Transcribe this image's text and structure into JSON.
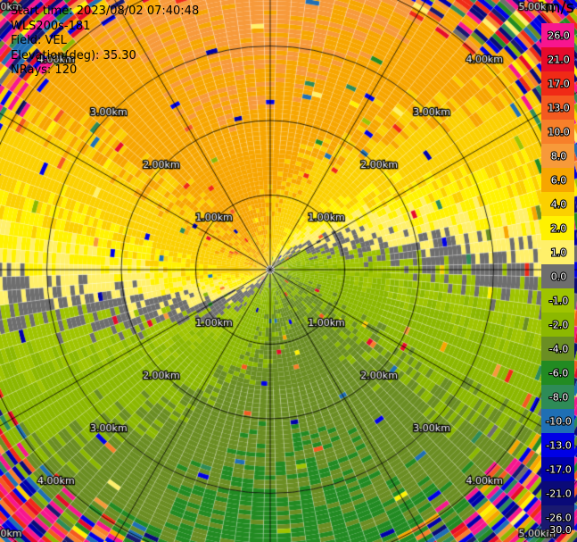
{
  "header": {
    "start_time": "Start time: 2023/08/02 07:40:48",
    "instrument": "WLS200s-181",
    "field": "Field: VEL",
    "elevation": "Elevation(deg): 35.30",
    "nrays": "NRays: 120"
  },
  "colorbar": {
    "unit": "m/s",
    "levels": [
      "26.0",
      "21.0",
      "17.0",
      "13.0",
      "10.0",
      "8.0",
      "6.0",
      "4.0",
      "2.0",
      "1.0",
      "0.0",
      "-1.0",
      "-2.0",
      "-4.0",
      "-6.0",
      "-8.0",
      "-10.0",
      "-13.0",
      "-17.0",
      "-21.0",
      "-26.0",
      "-30.0"
    ],
    "colors": [
      "#f7168f",
      "#e60a2b",
      "#f02a16",
      "#f45a20",
      "#f7802a",
      "#f79a3a",
      "#f7a600",
      "#fbd000",
      "#fff200",
      "#fff06a",
      "#6e6e6e",
      "#9fc400",
      "#8cb800",
      "#6b8e23",
      "#228b22",
      "#2e8b57",
      "#1f6fb4",
      "#0000e6",
      "#0000aa",
      "#0a0a78",
      "#191970"
    ]
  },
  "chart_data": {
    "type": "heatmap",
    "projection": "polar PPI",
    "field": "VEL",
    "unit": "m/s",
    "nrays": 120,
    "range_ring_labels": [
      "1.00km",
      "2.00km",
      "3.00km",
      "4.00km",
      "5.00km"
    ],
    "range_rings_km": [
      1,
      2,
      3,
      4,
      5
    ],
    "max_range_km": 5.8,
    "spokes_deg": [
      0,
      30,
      60,
      90,
      120,
      150,
      180,
      210,
      240,
      270,
      300,
      330
    ],
    "color_levels": [
      -30,
      -26,
      -21,
      -17,
      -13,
      -10,
      -8,
      -6,
      -4,
      -2,
      -1,
      0,
      1,
      2,
      4,
      6,
      8,
      10,
      13,
      17,
      21,
      26
    ],
    "velocity_pattern": {
      "receding_azimuth_deg": 0,
      "approaching_azimuth_deg": 180,
      "mean_wind_ms_near": 4,
      "mean_wind_ms_far": 7,
      "noisy_beyond_km": 4.1
    }
  }
}
